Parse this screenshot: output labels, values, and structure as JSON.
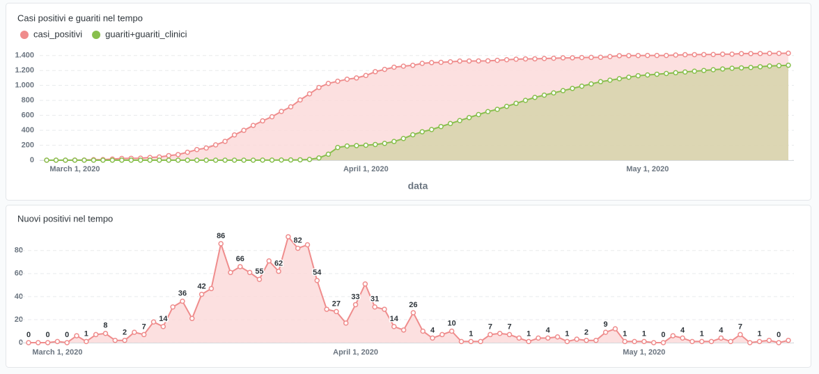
{
  "chart_data": [
    {
      "type": "area",
      "title": "Casi positivi e guariti nel tempo",
      "x_label": "data",
      "x": [
        "2020-02-27",
        "2020-02-28",
        "2020-02-29",
        "2020-03-01",
        "2020-03-02",
        "2020-03-03",
        "2020-03-04",
        "2020-03-05",
        "2020-03-06",
        "2020-03-07",
        "2020-03-08",
        "2020-03-09",
        "2020-03-10",
        "2020-03-11",
        "2020-03-12",
        "2020-03-13",
        "2020-03-14",
        "2020-03-15",
        "2020-03-16",
        "2020-03-17",
        "2020-03-18",
        "2020-03-19",
        "2020-03-20",
        "2020-03-21",
        "2020-03-22",
        "2020-03-23",
        "2020-03-24",
        "2020-03-25",
        "2020-03-26",
        "2020-03-27",
        "2020-03-28",
        "2020-03-29",
        "2020-03-30",
        "2020-03-31",
        "2020-04-01",
        "2020-04-02",
        "2020-04-03",
        "2020-04-04",
        "2020-04-05",
        "2020-04-06",
        "2020-04-07",
        "2020-04-08",
        "2020-04-09",
        "2020-04-10",
        "2020-04-11",
        "2020-04-12",
        "2020-04-13",
        "2020-04-14",
        "2020-04-15",
        "2020-04-16",
        "2020-04-17",
        "2020-04-18",
        "2020-04-19",
        "2020-04-20",
        "2020-04-21",
        "2020-04-22",
        "2020-04-23",
        "2020-04-24",
        "2020-04-25",
        "2020-04-26",
        "2020-04-27",
        "2020-04-28",
        "2020-04-29",
        "2020-04-30",
        "2020-05-01",
        "2020-05-02",
        "2020-05-03",
        "2020-05-04",
        "2020-05-05",
        "2020-05-06",
        "2020-05-07",
        "2020-05-08",
        "2020-05-09",
        "2020-05-10",
        "2020-05-11",
        "2020-05-12",
        "2020-05-13",
        "2020-05-14",
        "2020-05-15",
        "2020-05-16"
      ],
      "series": [
        {
          "name": "casi_positivi",
          "color": "#ef8c8c",
          "fill": "#fbdada",
          "values": [
            0,
            0,
            0,
            1,
            1,
            7,
            8,
            15,
            23,
            25,
            27,
            36,
            43,
            61,
            75,
            106,
            142,
            163,
            205,
            252,
            338,
            399,
            465,
            526,
            581,
            652,
            714,
            806,
            888,
            973,
            1027,
            1056,
            1083,
            1100,
            1133,
            1184,
            1215,
            1244,
            1258,
            1269,
            1295,
            1305,
            1309,
            1316,
            1326,
            1327,
            1328,
            1329,
            1336,
            1344,
            1351,
            1355,
            1356,
            1360,
            1364,
            1369,
            1370,
            1373,
            1375,
            1377,
            1386,
            1398,
            1399,
            1400,
            1401,
            1401,
            1401,
            1407,
            1411,
            1412,
            1413,
            1414,
            1418,
            1419,
            1426,
            1426,
            1427,
            1429,
            1429,
            1431
          ]
        },
        {
          "name": "guariti+guariti_clinici",
          "color": "#88bf4d",
          "fill": "#d6d3aa",
          "values": [
            0,
            0,
            0,
            0,
            0,
            0,
            0,
            0,
            0,
            0,
            0,
            0,
            0,
            0,
            0,
            0,
            0,
            0,
            0,
            0,
            0,
            0,
            0,
            1,
            1,
            2,
            3,
            5,
            10,
            30,
            80,
            170,
            190,
            195,
            200,
            210,
            225,
            250,
            290,
            340,
            380,
            410,
            450,
            490,
            530,
            570,
            610,
            650,
            680,
            720,
            760,
            800,
            840,
            870,
            900,
            930,
            960,
            990,
            1020,
            1050,
            1070,
            1090,
            1110,
            1130,
            1140,
            1150,
            1160,
            1170,
            1180,
            1190,
            1200,
            1210,
            1220,
            1230,
            1235,
            1240,
            1250,
            1260,
            1265,
            1270
          ]
        }
      ],
      "xlim": [
        "2020-02-27",
        "2020-05-16"
      ],
      "xticks": [
        {
          "value": "2020-03-01",
          "label": "March 1, 2020"
        },
        {
          "value": "2020-04-01",
          "label": "April 1, 2020"
        },
        {
          "value": "2020-05-01",
          "label": "May 1, 2020"
        }
      ],
      "ylim": [
        0,
        1500
      ],
      "yticks": [
        0,
        200,
        400,
        600,
        800,
        {
          "value": 1000,
          "label": "1.000"
        },
        {
          "value": 1200,
          "label": "1.200"
        },
        {
          "value": 1400,
          "label": "1.400"
        }
      ],
      "grid": true,
      "legend": "top-left"
    },
    {
      "type": "area",
      "title": "Nuovi positivi nel tempo",
      "x": [
        "2020-02-27",
        "2020-02-28",
        "2020-02-29",
        "2020-03-01",
        "2020-03-02",
        "2020-03-03",
        "2020-03-04",
        "2020-03-05",
        "2020-03-06",
        "2020-03-07",
        "2020-03-08",
        "2020-03-09",
        "2020-03-10",
        "2020-03-11",
        "2020-03-12",
        "2020-03-13",
        "2020-03-14",
        "2020-03-15",
        "2020-03-16",
        "2020-03-17",
        "2020-03-18",
        "2020-03-19",
        "2020-03-20",
        "2020-03-21",
        "2020-03-22",
        "2020-03-23",
        "2020-03-24",
        "2020-03-25",
        "2020-03-26",
        "2020-03-27",
        "2020-03-28",
        "2020-03-29",
        "2020-03-30",
        "2020-03-31",
        "2020-04-01",
        "2020-04-02",
        "2020-04-03",
        "2020-04-04",
        "2020-04-05",
        "2020-04-06",
        "2020-04-07",
        "2020-04-08",
        "2020-04-09",
        "2020-04-10",
        "2020-04-11",
        "2020-04-12",
        "2020-04-13",
        "2020-04-14",
        "2020-04-15",
        "2020-04-16",
        "2020-04-17",
        "2020-04-18",
        "2020-04-19",
        "2020-04-20",
        "2020-04-21",
        "2020-04-22",
        "2020-04-23",
        "2020-04-24",
        "2020-04-25",
        "2020-04-26",
        "2020-04-27",
        "2020-04-28",
        "2020-04-29",
        "2020-04-30",
        "2020-05-01",
        "2020-05-02",
        "2020-05-03",
        "2020-05-04",
        "2020-05-05",
        "2020-05-06",
        "2020-05-07",
        "2020-05-08",
        "2020-05-09",
        "2020-05-10",
        "2020-05-11",
        "2020-05-12",
        "2020-05-13",
        "2020-05-14",
        "2020-05-15",
        "2020-05-16"
      ],
      "values": [
        0,
        0,
        0,
        1,
        0,
        6,
        1,
        7,
        8,
        2,
        2,
        9,
        7,
        18,
        14,
        31,
        36,
        21,
        42,
        47,
        86,
        61,
        66,
        61,
        55,
        71,
        62,
        92,
        82,
        85,
        54,
        29,
        27,
        17,
        33,
        51,
        31,
        29,
        14,
        11,
        26,
        10,
        4,
        7,
        10,
        1,
        1,
        1,
        7,
        8,
        7,
        4,
        1,
        4,
        4,
        5,
        1,
        3,
        2,
        2,
        9,
        12,
        1,
        1,
        1,
        0,
        0,
        6,
        4,
        1,
        1,
        1,
        4,
        1,
        7,
        0,
        1,
        2,
        0,
        2
      ],
      "value_labels": [
        "0",
        null,
        "0",
        null,
        "0",
        null,
        "1",
        null,
        "8",
        null,
        "2",
        null,
        "7",
        null,
        "14",
        null,
        "36",
        null,
        "42",
        null,
        "86",
        null,
        "66",
        null,
        "55",
        null,
        "62",
        null,
        "82",
        null,
        "54",
        null,
        "27",
        null,
        "33",
        null,
        "31",
        null,
        "14",
        null,
        "26",
        null,
        "4",
        null,
        "10",
        null,
        "1",
        null,
        "7",
        null,
        "7",
        null,
        "1",
        null,
        "4",
        null,
        "1",
        null,
        "2",
        null,
        "9",
        null,
        "1",
        null,
        "1",
        null,
        "0",
        null,
        "4",
        null,
        "1",
        null,
        "4",
        null,
        "7",
        null,
        "1",
        null,
        "0",
        null
      ],
      "color": "#ef8c8c",
      "fill": "#fbdada",
      "xlim": [
        "2020-02-27",
        "2020-05-16"
      ],
      "xticks": [
        {
          "value": "2020-03-01",
          "label": "March 1, 2020"
        },
        {
          "value": "2020-04-01",
          "label": "April 1, 2020"
        },
        {
          "value": "2020-05-01",
          "label": "May 1, 2020"
        }
      ],
      "ylim": [
        0,
        95
      ],
      "yticks": [
        0,
        20,
        40,
        60,
        80
      ],
      "grid": true
    }
  ]
}
